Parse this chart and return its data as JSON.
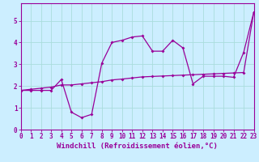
{
  "xlabel": "Windchill (Refroidissement éolien,°C)",
  "ylabel": "",
  "bg_color": "#cceeff",
  "grid_color": "#aadddd",
  "line_color": "#990099",
  "x_straight": [
    0,
    1,
    2,
    3,
    4,
    5,
    6,
    7,
    8,
    9,
    10,
    11,
    12,
    13,
    14,
    15,
    16,
    17,
    18,
    19,
    20,
    21,
    22,
    23
  ],
  "y_straight": [
    1.8,
    1.85,
    1.9,
    1.95,
    2.05,
    2.05,
    2.1,
    2.15,
    2.2,
    2.28,
    2.32,
    2.37,
    2.42,
    2.44,
    2.46,
    2.48,
    2.5,
    2.52,
    2.54,
    2.56,
    2.58,
    2.6,
    2.62,
    5.4
  ],
  "x_wavy": [
    0,
    1,
    2,
    3,
    4,
    5,
    6,
    7,
    8,
    9,
    10,
    11,
    12,
    13,
    14,
    15,
    16,
    17,
    18,
    19,
    20,
    21,
    22,
    23
  ],
  "y_wavy": [
    1.8,
    1.8,
    1.8,
    1.8,
    2.3,
    0.8,
    0.55,
    0.7,
    3.05,
    4.0,
    4.1,
    4.25,
    4.3,
    3.6,
    3.6,
    4.1,
    3.75,
    2.1,
    2.45,
    2.45,
    2.45,
    2.4,
    3.55,
    5.4
  ],
  "xlim": [
    0,
    23
  ],
  "ylim": [
    0,
    5.8
  ],
  "yticks": [
    0,
    1,
    2,
    3,
    4,
    5
  ],
  "xticks": [
    0,
    1,
    2,
    3,
    4,
    5,
    6,
    7,
    8,
    9,
    10,
    11,
    12,
    13,
    14,
    15,
    16,
    17,
    18,
    19,
    20,
    21,
    22,
    23
  ],
  "tick_fontsize": 5.5,
  "xlabel_fontsize": 6.5
}
